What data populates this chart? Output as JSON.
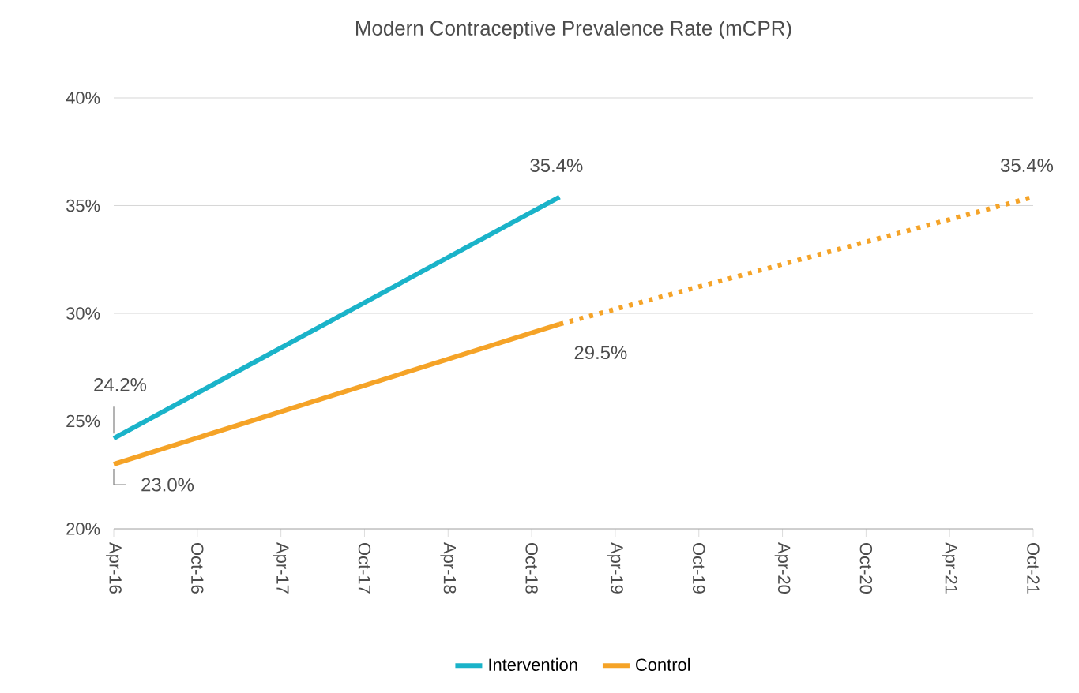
{
  "chart_data": {
    "type": "line",
    "title": "Modern Contraceptive Prevalence Rate (mCPR)",
    "series": [
      {
        "name": "Intervention",
        "color": "#1ab3c9",
        "x": [
          "2016-04",
          "2018-12"
        ],
        "values": [
          24.2,
          35.4
        ]
      },
      {
        "name": "Control",
        "color": "#f5a327",
        "x": [
          "2016-04",
          "2018-12"
        ],
        "values": [
          23.0,
          29.5
        ]
      },
      {
        "color": "#f5a327",
        "line_style": "dotted",
        "x": [
          "2018-12",
          "2021-10"
        ],
        "values": [
          29.5,
          35.4
        ]
      }
    ],
    "xlim": [
      "2016-04",
      "2021-10"
    ],
    "xticks": [
      {
        "value": "2016-04",
        "label": "Apr-16"
      },
      {
        "value": "2016-10",
        "label": "Oct-16"
      },
      {
        "value": "2017-04",
        "label": "Apr-17"
      },
      {
        "value": "2017-10",
        "label": "Oct-17"
      },
      {
        "value": "2018-04",
        "label": "Apr-18"
      },
      {
        "value": "2018-10",
        "label": "Oct-18"
      },
      {
        "value": "2019-04",
        "label": "Apr-19"
      },
      {
        "value": "2019-10",
        "label": "Oct-19"
      },
      {
        "value": "2020-04",
        "label": "Apr-20"
      },
      {
        "value": "2020-10",
        "label": "Oct-20"
      },
      {
        "value": "2021-04",
        "label": "Apr-21"
      },
      {
        "value": "2021-10",
        "label": "Oct-21"
      }
    ],
    "ylim": [
      20,
      40
    ],
    "yticks": [
      {
        "value": 20,
        "label": "20%"
      },
      {
        "value": 25,
        "label": "25%"
      },
      {
        "value": 30,
        "label": "30%"
      },
      {
        "value": 35,
        "label": "35%"
      },
      {
        "value": 40,
        "label": "40%"
      }
    ],
    "grid": "y",
    "legend": "bottom",
    "line_style": "solid",
    "marker": "none",
    "annotations": [
      {
        "text": "24.2%",
        "x": "2016-04",
        "y": 24.2
      },
      {
        "text": "23.0%",
        "x": "2016-04",
        "y": 23.0
      },
      {
        "text": "35.4%",
        "x": "2018-12",
        "y": 35.4
      },
      {
        "text": "29.5%",
        "x": "2018-12",
        "y": 29.5
      },
      {
        "text": "35.4%",
        "x": "2021-10",
        "y": 35.4
      }
    ]
  }
}
